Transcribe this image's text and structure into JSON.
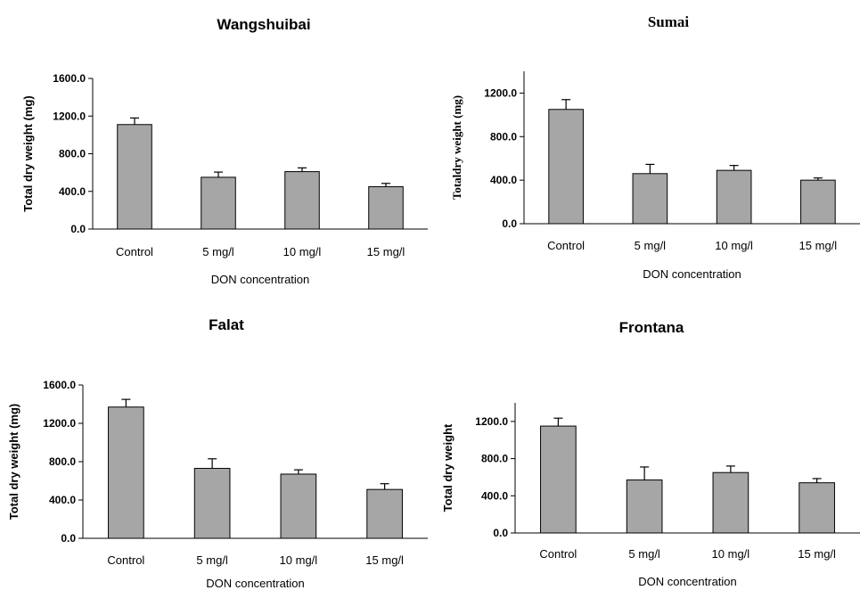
{
  "chart_data": [
    {
      "type": "bar",
      "title": "Wangshuibai",
      "xlabel": "DON concentration",
      "ylabel": "Total dry weight (mg)",
      "categories": [
        "Control",
        "5 mg/l",
        "10 mg/l",
        "15 mg/l"
      ],
      "values": [
        1110,
        550,
        610,
        450
      ],
      "errors": [
        70,
        55,
        40,
        35
      ],
      "ylim": [
        0,
        1600
      ],
      "yticks": [
        "0.0",
        "400.0",
        "800.0",
        "1200.0",
        "1600.0"
      ],
      "bar_color": "#a6a6a6"
    },
    {
      "type": "bar",
      "title": "Sumai",
      "xlabel": "DON concentration",
      "ylabel": "Totaldry weight (mg)",
      "categories": [
        "Control",
        "5 mg/l",
        "10 mg/l",
        "15 mg/l"
      ],
      "values": [
        1050,
        460,
        490,
        400
      ],
      "errors": [
        90,
        85,
        45,
        20
      ],
      "ylim": [
        0,
        1400
      ],
      "yticks": [
        "0.0",
        "400.0",
        "800.0",
        "1200.0"
      ],
      "bar_color": "#a6a6a6"
    },
    {
      "type": "bar",
      "title": "Falat",
      "xlabel": "DON concentration",
      "ylabel": "Total dry weight (mg)",
      "categories": [
        "Control",
        "5 mg/l",
        "10 mg/l",
        "15 mg/l"
      ],
      "values": [
        1370,
        730,
        670,
        510
      ],
      "errors": [
        80,
        100,
        45,
        60
      ],
      "ylim": [
        0,
        1600
      ],
      "yticks": [
        "0.0",
        "400.0",
        "800.0",
        "1200.0",
        "1600.0"
      ],
      "bar_color": "#a6a6a6"
    },
    {
      "type": "bar",
      "title": "Frontana",
      "xlabel": "DON concentration",
      "ylabel": "Total dry weight",
      "categories": [
        "Control",
        "5 mg/l",
        "10 mg/l",
        "15 mg/l"
      ],
      "values": [
        1150,
        570,
        650,
        540
      ],
      "errors": [
        85,
        140,
        70,
        45
      ],
      "ylim": [
        0,
        1400
      ],
      "yticks": [
        "0.0",
        "400.0",
        "800.0",
        "1200.0"
      ],
      "bar_color": "#a6a6a6"
    }
  ]
}
